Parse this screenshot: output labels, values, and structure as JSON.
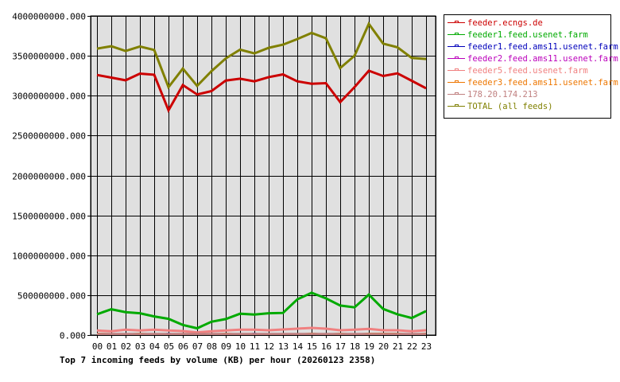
{
  "chart_data": {
    "type": "line",
    "title": "Top 7 incoming feeds by volume (KB) per hour (20260123 2358)",
    "xlabel": "",
    "ylabel": "",
    "ylim": [
      0,
      4000000000
    ],
    "grid": true,
    "legend_position": "right",
    "y_ticks": [
      "0.000",
      "500000000.000",
      "1000000000.000",
      "1500000000.000",
      "2000000000.000",
      "2500000000.000",
      "3000000000.000",
      "3500000000.000",
      "4000000000.000"
    ],
    "categories": [
      "00",
      "01",
      "02",
      "03",
      "04",
      "05",
      "06",
      "07",
      "08",
      "09",
      "10",
      "11",
      "12",
      "13",
      "14",
      "15",
      "16",
      "17",
      "18",
      "19",
      "20",
      "21",
      "22",
      "23"
    ],
    "series": [
      {
        "name": "feeder.ecngs.de",
        "color": "#cc0000",
        "width": 3,
        "values": [
          3260000000,
          3227000000,
          3193000000,
          3277000000,
          3263000000,
          2817000000,
          3133000000,
          3015000000,
          3057000000,
          3190000000,
          3213000000,
          3180000000,
          3233000000,
          3267000000,
          3180000000,
          3150000000,
          3157000000,
          2920000000,
          3107000000,
          3313000000,
          3247000000,
          3280000000,
          3187000000,
          3093000000
        ]
      },
      {
        "name": "feeder1.feed.usenet.farm",
        "color": "#00aa00",
        "width": 3,
        "values": [
          260000000,
          323000000,
          287000000,
          273000000,
          233000000,
          203000000,
          127000000,
          85000000,
          167000000,
          200000000,
          267000000,
          257000000,
          273000000,
          277000000,
          447000000,
          530000000,
          460000000,
          370000000,
          347000000,
          507000000,
          327000000,
          260000000,
          213000000,
          300000000
        ]
      },
      {
        "name": "feeder1.feed.ams11.usenet.farm",
        "color": "#0000bb",
        "width": 1,
        "values": [
          0,
          0,
          0,
          0,
          0,
          25000000,
          0,
          0,
          0,
          0,
          0,
          25000000,
          0,
          0,
          0,
          0,
          0,
          0,
          0,
          0,
          0,
          0,
          0,
          0
        ]
      },
      {
        "name": "feeder2.feed.ams11.usenet.farm",
        "color": "#bb00bb",
        "width": 1,
        "values": [
          0,
          0,
          0,
          0,
          0,
          0,
          0,
          0,
          0,
          0,
          0,
          0,
          0,
          0,
          0,
          0,
          0,
          0,
          0,
          0,
          0,
          0,
          0,
          0
        ]
      },
      {
        "name": "feeder5.feed.usenet.farm",
        "color": "#f08080",
        "width": 3,
        "values": [
          57000000,
          47000000,
          67000000,
          57000000,
          67000000,
          57000000,
          50000000,
          33000000,
          47000000,
          57000000,
          67000000,
          67000000,
          60000000,
          70000000,
          80000000,
          90000000,
          80000000,
          60000000,
          67000000,
          77000000,
          60000000,
          60000000,
          47000000,
          60000000
        ]
      },
      {
        "name": "feeder3.feed.ams11.usenet.farm",
        "color": "#ee7700",
        "width": 1,
        "values": [
          25000000,
          20000000,
          15000000,
          25000000,
          15000000,
          15000000,
          20000000,
          15000000,
          15000000,
          25000000,
          15000000,
          15000000,
          15000000,
          15000000,
          15000000,
          25000000,
          15000000,
          25000000,
          15000000,
          25000000,
          25000000,
          25000000,
          15000000,
          25000000
        ]
      },
      {
        "name": "178.20.174.213",
        "color": "#c08080",
        "width": 3,
        "values": [
          12000000,
          12000000,
          12000000,
          12000000,
          12000000,
          12000000,
          12000000,
          12000000,
          12000000,
          12000000,
          12000000,
          12000000,
          12000000,
          12000000,
          12000000,
          12000000,
          12000000,
          12000000,
          12000000,
          12000000,
          12000000,
          12000000,
          12000000,
          12000000
        ]
      },
      {
        "name": "TOTAL (all feeds)",
        "color": "#808000",
        "width": 3,
        "values": [
          3590000000,
          3620000000,
          3560000000,
          3617000000,
          3573000000,
          3107000000,
          3340000000,
          3123000000,
          3307000000,
          3467000000,
          3577000000,
          3530000000,
          3600000000,
          3640000000,
          3710000000,
          3787000000,
          3720000000,
          3347000000,
          3500000000,
          3900000000,
          3653000000,
          3607000000,
          3473000000,
          3460000000
        ]
      }
    ]
  },
  "legend": {
    "items": [
      {
        "label": "feeder.ecngs.de",
        "color": "#cc0000"
      },
      {
        "label": "feeder1.feed.usenet.farm",
        "color": "#00aa00"
      },
      {
        "label": "feeder1.feed.ams11.usenet.farm",
        "color": "#0000bb"
      },
      {
        "label": "feeder2.feed.ams11.usenet.farm",
        "color": "#bb00bb"
      },
      {
        "label": "feeder5.feed.usenet.farm",
        "color": "#f08080"
      },
      {
        "label": "feeder3.feed.ams11.usenet.farm",
        "color": "#ee7700"
      },
      {
        "label": "178.20.174.213",
        "color": "#c08080"
      },
      {
        "label": "TOTAL (all feeds)",
        "color": "#808000"
      }
    ]
  },
  "colors": {
    "plot_background": "#e0e0e0",
    "grid": "#000000",
    "page_background": "#ffffff"
  }
}
